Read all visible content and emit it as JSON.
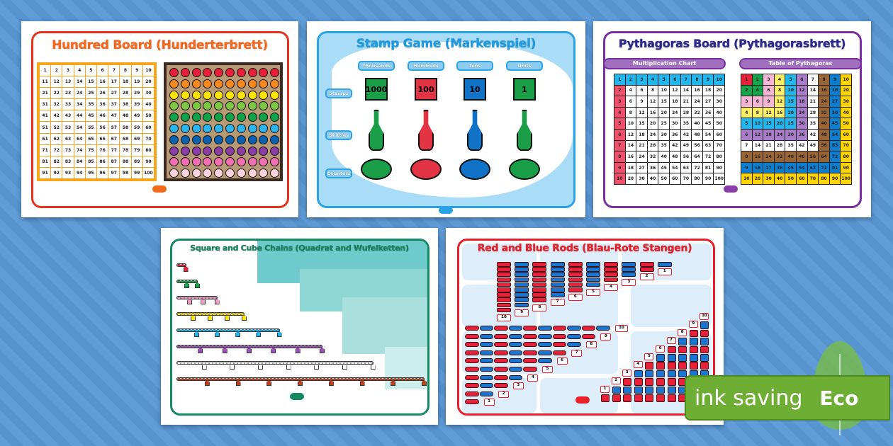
{
  "cards": {
    "hundred": {
      "title": "Hundred Board (Hunderterbrett)",
      "title_color": "#f26a1b",
      "frame_color": "#e8311c",
      "bead_colors": [
        "#e8203a",
        "#f7891f",
        "#ffe500",
        "#7cc843",
        "#0fa34a",
        "#2bb5ef",
        "#0a63b1",
        "#8a3fa8",
        "#f06fb5",
        "#fbd3dc"
      ]
    },
    "stamp": {
      "title": "Stamp Game (Markenspiel)",
      "frame_color": "#2aa3e6",
      "columns": [
        {
          "label": "Thousands",
          "value": "1000",
          "color": "#1a9f48"
        },
        {
          "label": "Hundreds",
          "value": "100",
          "color": "#e23444"
        },
        {
          "label": "Tens",
          "value": "10",
          "color": "#1173c8"
        },
        {
          "label": "Units",
          "value": "1",
          "color": "#1a9f48"
        }
      ],
      "rows": [
        "Stamps",
        "Skittles",
        "Counters"
      ]
    },
    "pythagoras": {
      "title": "Pythagoras Board (Pythagorasbrett)",
      "frame_color": "#7a2fa0",
      "left_header": "Multiplication Chart",
      "right_header": "Table of Pythagoras",
      "level_colors": [
        "#e8203a",
        "#17a34a",
        "#f5b6d6",
        "#fff06a",
        "#22b6ec",
        "#a97cc9",
        "#ffffff",
        "#9a6536",
        "#0a7fd2",
        "#ffd400"
      ]
    },
    "chains": {
      "title": "Square and Cube Chains (Quadrat and Wufelketten)",
      "frame_color": "#138a5f",
      "chain_colors": [
        "#e8203a",
        "#17a34a",
        "#f59bc8",
        "#ffe500",
        "#22b6ec",
        "#a14fbf",
        "#ffffff",
        "#c0431f"
      ]
    },
    "rods": {
      "title": "Red and Blue Rods (Blau-Rote Stangen)",
      "frame_color": "#e8202a",
      "labels": [
        "1",
        "2",
        "3",
        "4",
        "5",
        "6",
        "7",
        "8",
        "9",
        "10"
      ],
      "red": "#e8203a",
      "blue": "#1877d2"
    }
  },
  "badge": {
    "text": "ink saving",
    "eco": "Eco",
    "color": "#6fae34"
  }
}
